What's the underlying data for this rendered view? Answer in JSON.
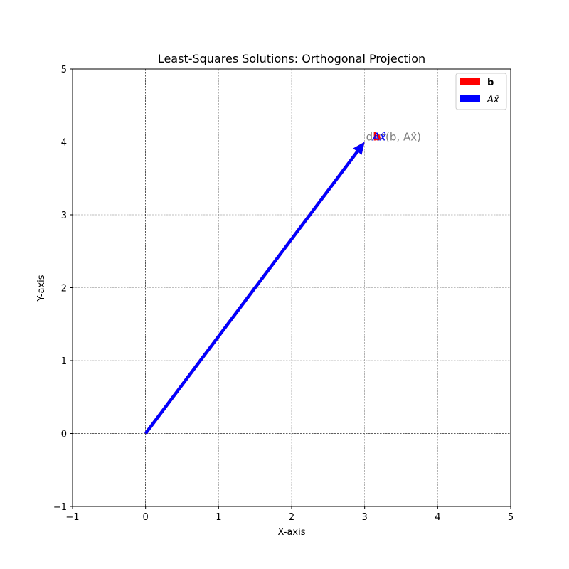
{
  "chart_data": {
    "type": "quiver",
    "title": "Least-Squares Solutions: Orthogonal Projection",
    "xlabel": "X-axis",
    "ylabel": "Y-axis",
    "xlim": [
      -1,
      5
    ],
    "ylim": [
      -1,
      5
    ],
    "xticks": [
      -1,
      0,
      1,
      2,
      3,
      4,
      5
    ],
    "yticks": [
      -1,
      0,
      1,
      2,
      3,
      4,
      5
    ],
    "xtick_labels": [
      "−1",
      "0",
      "1",
      "2",
      "3",
      "4",
      "5"
    ],
    "ytick_labels": [
      "−1",
      "0",
      "1",
      "2",
      "3",
      "4",
      "5"
    ],
    "grid": true,
    "legend_position": "top-right",
    "series": [
      {
        "name": "b",
        "color": "#ff0000",
        "start": [
          0,
          0
        ],
        "end": [
          3,
          4
        ],
        "label": "b"
      },
      {
        "name": "Ax̂",
        "color": "#0000ff",
        "start": [
          0,
          0
        ],
        "end": [
          3,
          4
        ],
        "label": "Ax̂"
      }
    ],
    "annotations": [
      {
        "text": "dist(b, Ax̂)",
        "x": 3,
        "y": 4,
        "color": "#808080"
      }
    ]
  }
}
